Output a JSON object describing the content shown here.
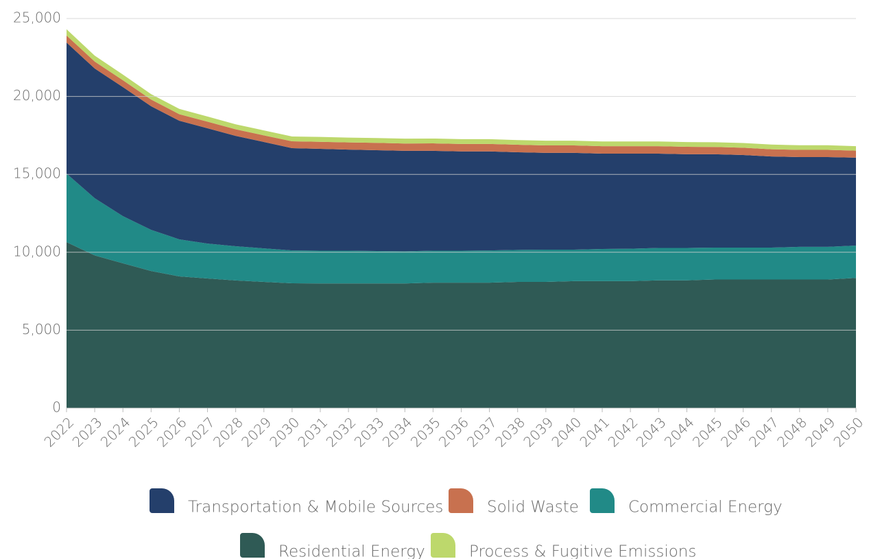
{
  "chart_data": {
    "type": "stacked-area",
    "categories": [
      "2022",
      "2023",
      "2024",
      "2025",
      "2026",
      "2027",
      "2028",
      "2029",
      "2030",
      "2031",
      "2032",
      "2033",
      "2034",
      "2035",
      "2036",
      "2037",
      "2038",
      "2039",
      "2040",
      "2041",
      "2042",
      "2043",
      "2044",
      "2045",
      "2046",
      "2047",
      "2048",
      "2049",
      "2050"
    ],
    "series": [
      {
        "name": "Residential Energy",
        "color": "#2f5a55",
        "values": [
          10650,
          9800,
          9290,
          8800,
          8450,
          8320,
          8190,
          8100,
          8010,
          8000,
          8000,
          8000,
          8000,
          8050,
          8050,
          8050,
          8100,
          8100,
          8150,
          8150,
          8150,
          8200,
          8200,
          8250,
          8250,
          8250,
          8250,
          8250,
          8350
        ]
      },
      {
        "name": "Commercial Energy",
        "color": "#218a87",
        "values": [
          4400,
          3670,
          3030,
          2640,
          2380,
          2240,
          2200,
          2150,
          2110,
          2100,
          2100,
          2080,
          2060,
          2050,
          2050,
          2070,
          2050,
          2070,
          2020,
          2060,
          2080,
          2080,
          2080,
          2050,
          2050,
          2050,
          2100,
          2100,
          2080
        ]
      },
      {
        "name": "Transportation & Mobile Sources",
        "color": "#243f6b",
        "values": [
          8410,
          8320,
          8280,
          7930,
          7610,
          7400,
          7080,
          6830,
          6560,
          6540,
          6490,
          6470,
          6450,
          6410,
          6370,
          6350,
          6270,
          6210,
          6210,
          6120,
          6100,
          6050,
          6010,
          5990,
          5940,
          5850,
          5760,
          5760,
          5640
        ]
      },
      {
        "name": "Solid Waste",
        "color": "#c8714f",
        "values": [
          450,
          450,
          440,
          430,
          420,
          420,
          420,
          420,
          440,
          450,
          460,
          470,
          470,
          480,
          480,
          480,
          480,
          480,
          480,
          480,
          480,
          480,
          480,
          470,
          470,
          460,
          460,
          460,
          450
        ]
      },
      {
        "name": "Process & Fugitive Emissions",
        "color": "#bdd86c",
        "values": [
          400,
          380,
          360,
          350,
          340,
          330,
          320,
          320,
          310,
          310,
          310,
          310,
          310,
          310,
          310,
          310,
          300,
          300,
          300,
          300,
          300,
          300,
          300,
          300,
          300,
          300,
          300,
          300,
          290
        ]
      }
    ],
    "legend_order": [
      2,
      3,
      1,
      0,
      4
    ],
    "ylim": [
      0,
      25000
    ],
    "yticks": [
      0,
      {
        "value": 5000,
        "label": "5,000"
      },
      {
        "value": 10000,
        "label": "10,000"
      },
      {
        "value": 15000,
        "label": "15,000"
      },
      {
        "value": 20000,
        "label": "20,000"
      },
      {
        "value": 25000,
        "label": "25,000"
      }
    ],
    "grid": true
  }
}
